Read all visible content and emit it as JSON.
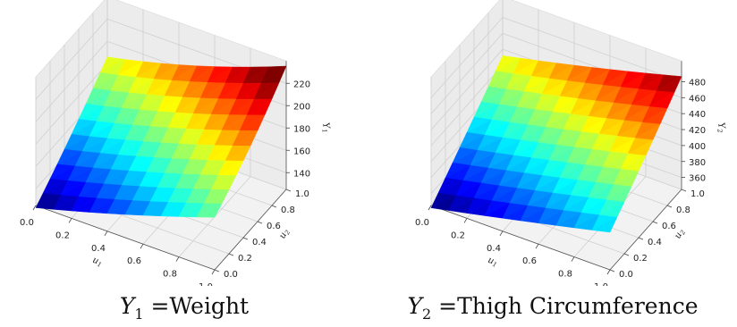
{
  "chart_data": [
    {
      "type": "surface",
      "colormap": "jet",
      "grid": true,
      "xlabel": "u1",
      "ylabel": "u2",
      "zlabel": "Y1",
      "xlim": [
        0,
        1
      ],
      "ylim": [
        0,
        1
      ],
      "zlim": [
        125,
        225
      ],
      "x_ticks": [
        "0.0",
        "0.2",
        "0.4",
        "0.6",
        "0.8",
        "1.0"
      ],
      "y_ticks": [
        "0.0",
        "0.2",
        "0.4",
        "0.6",
        "0.8",
        "1.0"
      ],
      "z_ticks": [
        "140",
        "160",
        "180",
        "200",
        "220"
      ],
      "corners": {
        "z00": 123,
        "z10": 172,
        "z01": 186,
        "z11": 227
      },
      "curvature": 14,
      "caption": {
        "var": "Y",
        "sub": "1",
        "text": " =Weight"
      }
    },
    {
      "type": "surface",
      "colormap": "jet",
      "grid": true,
      "xlabel": "u1",
      "ylabel": "u2",
      "zlabel": "Y2",
      "xlim": [
        0,
        1
      ],
      "ylim": [
        0,
        1
      ],
      "zlim": [
        345,
        485
      ],
      "x_ticks": [
        "0.0",
        "0.2",
        "0.4",
        "0.6",
        "0.8",
        "1.0"
      ],
      "y_ticks": [
        "0.0",
        "0.2",
        "0.4",
        "0.6",
        "0.8",
        "1.0"
      ],
      "z_ticks": [
        "360",
        "380",
        "400",
        "420",
        "440",
        "460",
        "480"
      ],
      "corners": {
        "z00": 342,
        "z10": 392,
        "z01": 432,
        "z11": 483
      },
      "curvature": 6,
      "caption": {
        "var": "Y",
        "sub": "2",
        "text": " =Thigh Circumference"
      }
    }
  ]
}
